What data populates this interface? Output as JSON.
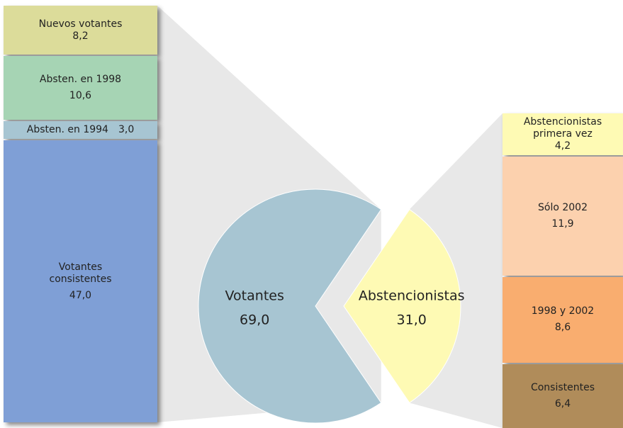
{
  "chart_data": [
    {
      "type": "pie",
      "categories": [
        "Votantes",
        "Abstencionistas"
      ],
      "values": [
        69.0,
        31.0
      ],
      "value_labels": [
        "69,0",
        "31,0"
      ],
      "colors": [
        "#a7c5d2",
        "#fefab4"
      ]
    },
    {
      "type": "stack",
      "categories": [
        "Nuevos votantes",
        "Absten. en 1998",
        "Absten. en 1994",
        "Votantes consistentes"
      ],
      "values": [
        8.2,
        10.6,
        3.0,
        47.0
      ],
      "value_labels": [
        "8,2",
        "10,6",
        "3,0",
        "47,0"
      ],
      "colors": [
        "#dcdc9a",
        "#a6d4b4",
        "#a7c5d2",
        "#7f9fd6"
      ]
    },
    {
      "type": "stack",
      "categories": [
        "Abstencionistas primera vez",
        "Sólo 2002",
        "1998 y 2002",
        "Consistentes"
      ],
      "values": [
        4.2,
        11.9,
        8.6,
        6.4
      ],
      "value_labels": [
        "4,2",
        "11,9",
        "8,6",
        "6,4"
      ],
      "colors": [
        "#fefab4",
        "#fcd1ae",
        "#f9ad6f",
        "#b08c5a"
      ]
    }
  ]
}
